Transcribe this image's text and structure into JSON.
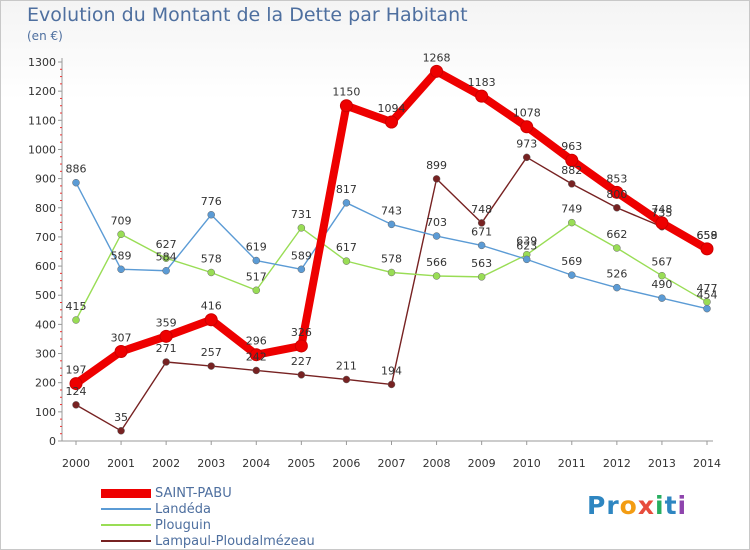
{
  "chart_data": {
    "type": "line",
    "title": "Evolution du Montant de la Dette par Habitant",
    "subtitle": "(en €)",
    "xlabel": "",
    "ylabel": "",
    "categories": [
      "2000",
      "2001",
      "2002",
      "2003",
      "2004",
      "2005",
      "2006",
      "2007",
      "2008",
      "2009",
      "2010",
      "2011",
      "2012",
      "2013",
      "2014"
    ],
    "ylim": [
      0,
      1300
    ],
    "yticks": [
      "0",
      "100",
      "200",
      "300",
      "400",
      "500",
      "600",
      "700",
      "800",
      "900",
      "1000",
      "1100",
      "1200",
      "1300"
    ],
    "grid": false,
    "legend_position": "bottom-left",
    "series": [
      {
        "name": "SAINT-PABU",
        "color": "#ee0000",
        "values": [
          197,
          307,
          359,
          416,
          296,
          326,
          1150,
          1094,
          1268,
          1183,
          1078,
          963,
          853,
          748,
          659
        ]
      },
      {
        "name": "Landéda",
        "color": "#5b9bd5",
        "values": [
          886,
          589,
          584,
          776,
          619,
          589,
          817,
          743,
          703,
          671,
          623,
          569,
          526,
          490,
          454
        ]
      },
      {
        "name": "Plouguin",
        "color": "#99dd55",
        "values": [
          415,
          709,
          627,
          578,
          517,
          731,
          617,
          578,
          566,
          563,
          639,
          749,
          662,
          567,
          477
        ]
      },
      {
        "name": "Lampaul-Ploudalmézeau",
        "color": "#772222",
        "values": [
          124,
          35,
          271,
          257,
          242,
          227,
          211,
          194,
          899,
          748,
          973,
          882,
          800,
          735,
          658
        ]
      }
    ],
    "data_labels": [
      [
        "197",
        "307",
        "359",
        "416",
        "296",
        "326",
        "1150",
        "1094",
        "1268",
        "1183",
        "1078",
        "963",
        "853",
        "748",
        "659"
      ],
      [
        "886",
        "589",
        "584",
        "776",
        "619",
        "589",
        "817",
        "743",
        "703",
        "671",
        "623",
        "569",
        "526",
        "490",
        "454"
      ],
      [
        "415",
        "709",
        "627",
        "578",
        "517",
        "731",
        "617",
        "578",
        "566",
        "563",
        "639",
        "749",
        "662",
        "567",
        "477"
      ],
      [
        "124",
        "35",
        "271",
        "257",
        "242",
        "227",
        "211",
        "194",
        "899",
        "748",
        "973",
        "882",
        "800",
        "735",
        "658"
      ]
    ]
  },
  "logo": {
    "text": "Proxiti",
    "letters": [
      {
        "ch": "P",
        "color": "#2e86c1"
      },
      {
        "ch": "r",
        "color": "#2e86c1"
      },
      {
        "ch": "o",
        "color": "#f39c12"
      },
      {
        "ch": "x",
        "color": "#e74c3c"
      },
      {
        "ch": "i",
        "color": "#27ae60"
      },
      {
        "ch": "t",
        "color": "#2e86c1"
      },
      {
        "ch": "i",
        "color": "#8e44ad"
      }
    ]
  }
}
